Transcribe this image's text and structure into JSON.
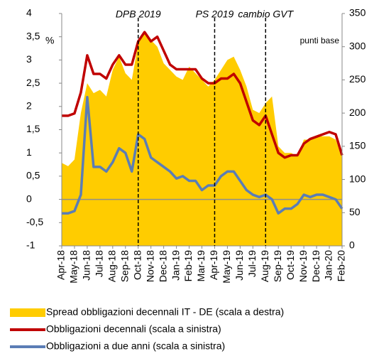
{
  "chart_data": {
    "type": "line",
    "categories": [
      "Apr-18",
      null,
      "May-18",
      null,
      "Jun-18",
      null,
      "Jul-18",
      null,
      "Aug-18",
      null,
      "Sep-18",
      null,
      "Oct-18",
      null,
      "Nov-18",
      null,
      "Dec-18",
      null,
      "Jan-19",
      null,
      "Feb-19",
      null,
      "Mar-19",
      null,
      "Apr-19",
      null,
      "May-19",
      null,
      "Jun-19",
      null,
      "Jul-19",
      null,
      "Aug-19",
      null,
      "Sep-19",
      null,
      "Oct-19",
      null,
      "Nov-19",
      null,
      "Dec-19",
      null,
      "Jan-20",
      null,
      "Feb-20"
    ],
    "series": [
      {
        "name": "Spread obbligazioni decennali IT - DE (scala a destra)",
        "color": "#FFCC00",
        "type": "area",
        "axis": "y2",
        "values": [
          125,
          120,
          130,
          200,
          245,
          230,
          235,
          225,
          265,
          285,
          260,
          250,
          305,
          320,
          310,
          300,
          275,
          265,
          255,
          250,
          270,
          260,
          250,
          240,
          250,
          265,
          280,
          285,
          265,
          240,
          205,
          200,
          215,
          225,
          150,
          140,
          140,
          135,
          160,
          160,
          165,
          165,
          165,
          160,
          135
        ]
      },
      {
        "name": "Obbligazioni decennali (scala a sinistra)",
        "color": "#C00000",
        "type": "line",
        "values": [
          1.8,
          1.8,
          1.85,
          2.3,
          3.1,
          2.7,
          2.7,
          2.6,
          2.9,
          3.1,
          2.9,
          2.9,
          3.4,
          3.6,
          3.4,
          3.5,
          3.2,
          2.9,
          2.8,
          2.8,
          2.8,
          2.8,
          2.6,
          2.5,
          2.5,
          2.6,
          2.6,
          2.7,
          2.5,
          2.1,
          1.7,
          1.6,
          1.8,
          1.4,
          1.0,
          0.9,
          0.95,
          0.95,
          1.2,
          1.3,
          1.35,
          1.4,
          1.45,
          1.4,
          0.95
        ]
      },
      {
        "name": "Obbligazioni a due anni (scala a sinistra)",
        "color": "#5B7DB5",
        "type": "line",
        "values": [
          -0.3,
          -0.3,
          -0.25,
          0.1,
          2.2,
          0.7,
          0.7,
          0.6,
          0.8,
          1.1,
          1.0,
          0.6,
          1.4,
          1.3,
          0.9,
          0.8,
          0.7,
          0.6,
          0.45,
          0.5,
          0.4,
          0.4,
          0.2,
          0.3,
          0.3,
          0.5,
          0.6,
          0.6,
          0.4,
          0.2,
          0.1,
          0.05,
          0.1,
          0.0,
          -0.3,
          -0.2,
          -0.2,
          -0.1,
          0.1,
          0.05,
          0.1,
          0.1,
          0.05,
          0.0,
          -0.2
        ]
      }
    ],
    "ylabel": "%",
    "y2label": "punti base",
    "ylim": [
      -1,
      4
    ],
    "yticks": [
      -1,
      {
        "value": -0.5,
        "label": "-0,5"
      },
      0,
      {
        "value": 0.5,
        "label": "0,5"
      },
      1,
      {
        "value": 1.5,
        "label": "1,5"
      },
      2,
      {
        "value": 2.5,
        "label": "2,5"
      },
      3,
      {
        "value": 3.5,
        "label": "3,5"
      },
      4
    ],
    "y2lim": [
      0,
      350
    ],
    "y2ticks": [
      0,
      50,
      100,
      150,
      200,
      250,
      300,
      350
    ],
    "annotations": [
      {
        "text": "DPB 2019",
        "x": "Oct-18"
      },
      {
        "text": "PS 2019",
        "x": "Apr-19"
      },
      {
        "text": "cambio GVT",
        "x": "Aug-19"
      }
    ],
    "zero_line_color": "#8E8E8E"
  }
}
